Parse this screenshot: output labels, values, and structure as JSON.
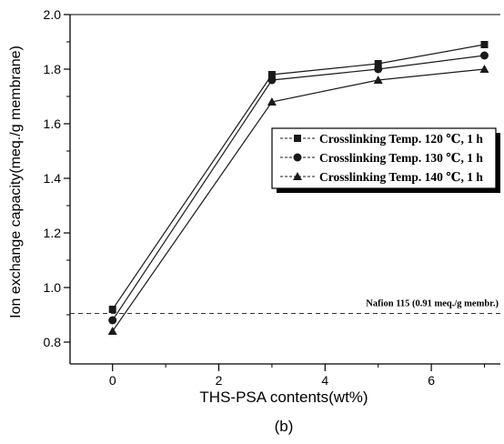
{
  "chart_data": {
    "type": "line",
    "xlabel": "THS-PSA contents(wt%)",
    "ylabel": "Ion exchange capacity(meq./g membrane)",
    "caption": "(b)",
    "xlim": [
      -0.8,
      7.3
    ],
    "ylim": [
      0.72,
      2.0
    ],
    "xticks": [
      0,
      2,
      4,
      6
    ],
    "xtick_labels": [
      "0",
      "2",
      "4",
      "6"
    ],
    "yticks": [
      0.8,
      1.0,
      1.2,
      1.4,
      1.6,
      1.8,
      2.0
    ],
    "ytick_labels": [
      "0.8",
      "1.0",
      "1.2",
      "1.4",
      "1.6",
      "1.8",
      "2.0"
    ],
    "x": [
      0,
      3,
      5,
      7
    ],
    "series": [
      {
        "name": "Crosslinking Temp. 120 ℃, 1 h",
        "marker": "square",
        "values": [
          0.92,
          1.78,
          1.82,
          1.89
        ]
      },
      {
        "name": "Crosslinking Temp. 130 ℃, 1 h",
        "marker": "circle",
        "values": [
          0.88,
          1.76,
          1.8,
          1.85
        ]
      },
      {
        "name": "Crosslinking Temp. 140 ℃, 1 h",
        "marker": "triangle",
        "values": [
          0.84,
          1.68,
          1.76,
          1.8
        ]
      }
    ],
    "reference_line": {
      "y": 0.905,
      "label": "Nafion 115 (0.91 meq./g membr.)"
    },
    "legend": "right",
    "grid": false,
    "colors": {
      "line": "#1a1a1a",
      "axis": "#000000",
      "background": "#ffffff"
    }
  }
}
